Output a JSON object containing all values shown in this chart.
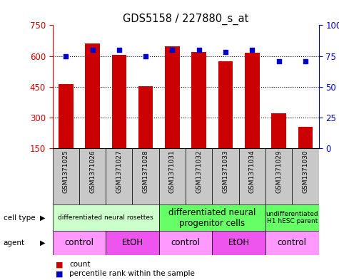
{
  "title": "GDS5158 / 227880_s_at",
  "samples": [
    "GSM1371025",
    "GSM1371026",
    "GSM1371027",
    "GSM1371028",
    "GSM1371031",
    "GSM1371032",
    "GSM1371033",
    "GSM1371034",
    "GSM1371029",
    "GSM1371030"
  ],
  "counts": [
    465,
    660,
    605,
    453,
    648,
    618,
    575,
    615,
    320,
    255
  ],
  "percentiles": [
    75,
    80,
    80,
    75,
    80,
    80,
    78,
    80,
    71,
    71
  ],
  "ylim_left": [
    150,
    750
  ],
  "ylim_right": [
    0,
    100
  ],
  "yticks_left": [
    150,
    300,
    450,
    600,
    750
  ],
  "yticks_right": [
    0,
    25,
    50,
    75,
    100
  ],
  "bar_color": "#cc0000",
  "dot_color": "#0000cc",
  "cell_type_groups": [
    {
      "label": "differentiated neural rosettes",
      "start": 0,
      "end": 3,
      "color": "#ccffcc",
      "fontsize": 6.5
    },
    {
      "label": "differentiated neural\nprogenitor cells",
      "start": 4,
      "end": 7,
      "color": "#66ff66",
      "fontsize": 8.5
    },
    {
      "label": "undifferentiated\nH1 hESC parent",
      "start": 8,
      "end": 9,
      "color": "#66ff66",
      "fontsize": 6.5
    }
  ],
  "agent_groups": [
    {
      "label": "control",
      "start": 0,
      "end": 1,
      "color": "#ff99ff"
    },
    {
      "label": "EtOH",
      "start": 2,
      "end": 3,
      "color": "#ee55ee"
    },
    {
      "label": "control",
      "start": 4,
      "end": 5,
      "color": "#ff99ff"
    },
    {
      "label": "EtOH",
      "start": 6,
      "end": 7,
      "color": "#ee55ee"
    },
    {
      "label": "control",
      "start": 8,
      "end": 9,
      "color": "#ff99ff"
    }
  ],
  "bar_width": 0.55,
  "background_color": "#ffffff",
  "label_color_left": "#cc0000",
  "label_color_right": "#0000cc",
  "sample_bg_color": "#c8c8c8",
  "left_labels": [
    "cell type",
    "agent"
  ],
  "legend": [
    {
      "color": "#cc0000",
      "marker": "s",
      "label": "count"
    },
    {
      "color": "#0000cc",
      "marker": "s",
      "label": "percentile rank within the sample"
    }
  ]
}
